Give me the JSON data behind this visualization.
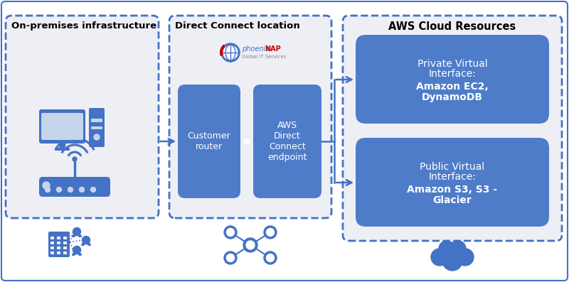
{
  "bg_color": "#ffffff",
  "border_color": "#4472c4",
  "section_fill": "#eeeff5",
  "box_blue": "#4e7cc9",
  "text_dark": "#000000",
  "text_white": "#ffffff",
  "section1_title": "On-premises infrastructure",
  "section2_title": "Direct Connect location",
  "aws_title": "AWS Cloud Resources",
  "router_label": "Customer\nrouter",
  "endpoint_label": "AWS\nDirect\nConnect\nendpoint",
  "private_line1": "Private Virtual",
  "private_line2": "Interface:",
  "private_line3": "Amazon EC2,",
  "private_line4": "DynamoDB",
  "public_line1": "Public Virtual",
  "public_line2": "Interface:",
  "public_line3": "Amazon S3, S3 -",
  "public_line4": "Glacier"
}
